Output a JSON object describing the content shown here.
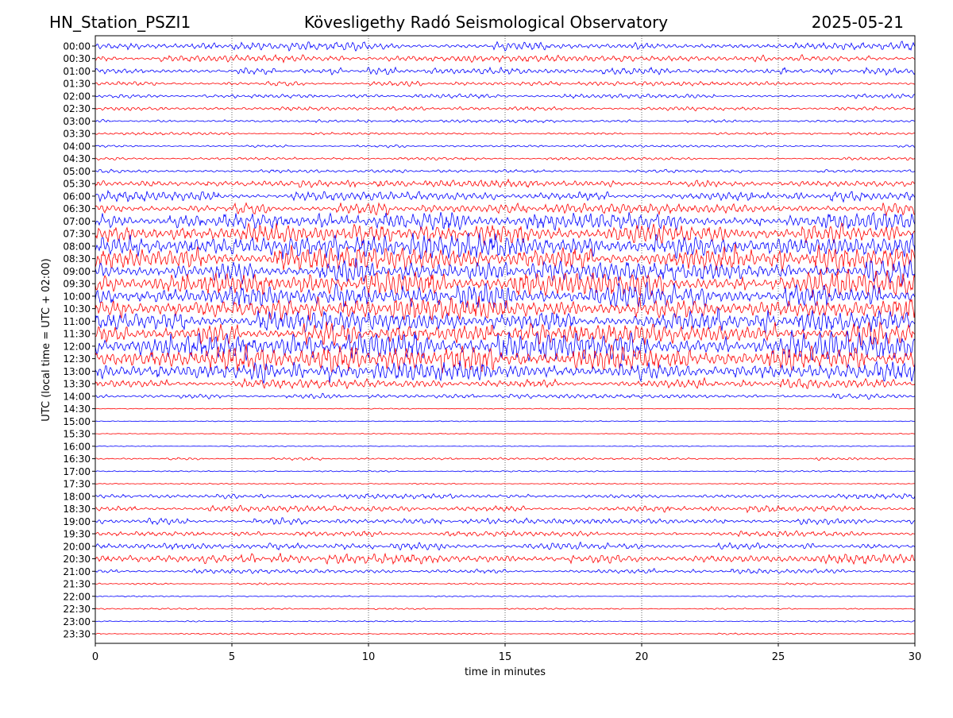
{
  "chart_data": {
    "type": "line",
    "subtype": "helicorder",
    "title_left": "HN_Station_PSZI1",
    "title_center": "Kövesligethy Radó Seismological Observatory",
    "title_right": "2025-05-21",
    "xlabel": "time in minutes",
    "ylabel": "UTC (local time = UTC + 02:00)",
    "xlim": [
      0,
      30
    ],
    "x_ticks": [
      "0",
      "5",
      "10",
      "15",
      "20",
      "25",
      "30"
    ],
    "grid": "vertical dotted at every 5 minutes",
    "colors": [
      "#0000ff",
      "#ff0000"
    ],
    "rows": [
      {
        "label": "00:00",
        "amplitude": 0.25
      },
      {
        "label": "00:30",
        "amplitude": 0.2
      },
      {
        "label": "01:00",
        "amplitude": 0.2
      },
      {
        "label": "01:30",
        "amplitude": 0.15
      },
      {
        "label": "02:00",
        "amplitude": 0.12
      },
      {
        "label": "02:30",
        "amplitude": 0.12
      },
      {
        "label": "03:00",
        "amplitude": 0.1
      },
      {
        "label": "03:30",
        "amplitude": 0.08
      },
      {
        "label": "04:00",
        "amplitude": 0.08
      },
      {
        "label": "04:30",
        "amplitude": 0.08
      },
      {
        "label": "05:00",
        "amplitude": 0.1
      },
      {
        "label": "05:30",
        "amplitude": 0.25
      },
      {
        "label": "06:00",
        "amplitude": 0.3
      },
      {
        "label": "06:30",
        "amplitude": 0.35
      },
      {
        "label": "07:00",
        "amplitude": 0.5
      },
      {
        "label": "07:30",
        "amplitude": 0.6
      },
      {
        "label": "08:00",
        "amplitude": 0.8
      },
      {
        "label": "08:30",
        "amplitude": 0.8
      },
      {
        "label": "09:00",
        "amplitude": 0.7
      },
      {
        "label": "09:30",
        "amplitude": 0.7
      },
      {
        "label": "10:00",
        "amplitude": 0.7
      },
      {
        "label": "10:30",
        "amplitude": 0.7
      },
      {
        "label": "11:00",
        "amplitude": 0.7
      },
      {
        "label": "11:30",
        "amplitude": 0.7
      },
      {
        "label": "12:00",
        "amplitude": 0.8
      },
      {
        "label": "12:30",
        "amplitude": 0.8
      },
      {
        "label": "13:00",
        "amplitude": 0.6
      },
      {
        "label": "13:30",
        "amplitude": 0.3
      },
      {
        "label": "14:00",
        "amplitude": 0.15
      },
      {
        "label": "14:30",
        "amplitude": 0.03
      },
      {
        "label": "15:00",
        "amplitude": 0.03
      },
      {
        "label": "15:30",
        "amplitude": 0.03
      },
      {
        "label": "16:00",
        "amplitude": 0.03
      },
      {
        "label": "16:30",
        "amplitude": 0.08
      },
      {
        "label": "17:00",
        "amplitude": 0.04
      },
      {
        "label": "17:30",
        "amplitude": 0.04
      },
      {
        "label": "18:00",
        "amplitude": 0.15
      },
      {
        "label": "18:30",
        "amplitude": 0.2
      },
      {
        "label": "19:00",
        "amplitude": 0.2
      },
      {
        "label": "19:30",
        "amplitude": 0.15
      },
      {
        "label": "20:00",
        "amplitude": 0.2
      },
      {
        "label": "20:30",
        "amplitude": 0.3
      },
      {
        "label": "21:00",
        "amplitude": 0.15
      },
      {
        "label": "21:30",
        "amplitude": 0.06
      },
      {
        "label": "22:00",
        "amplitude": 0.04
      },
      {
        "label": "22:30",
        "amplitude": 0.05
      },
      {
        "label": "23:00",
        "amplitude": 0.04
      },
      {
        "label": "23:30",
        "amplitude": 0.05
      }
    ]
  }
}
